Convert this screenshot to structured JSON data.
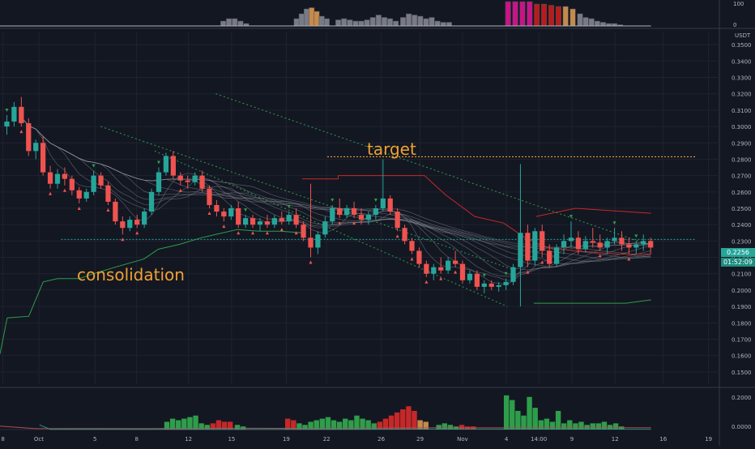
{
  "chart_data": {
    "type": "candlestick",
    "x_ticks": [
      "8",
      "Oct",
      "5",
      "8",
      "12",
      "15",
      "19",
      "22",
      "26",
      "29",
      "Nov",
      "4",
      "14:00",
      "9",
      "12",
      "16",
      "19"
    ],
    "y_ticks": [
      "0.3500",
      "0.3400",
      "0.3300",
      "0.3200",
      "0.3100",
      "0.3000",
      "0.2900",
      "0.2800",
      "0.2700",
      "0.2600",
      "0.2500",
      "0.2400",
      "0.2300",
      "0.2200",
      "0.2100",
      "0.2000",
      "0.1900",
      "0.1800",
      "0.1700",
      "0.1600",
      "0.1500"
    ],
    "y_unit": "USDT",
    "ylim": [
      0.1425,
      0.3575
    ],
    "last_price": "0.2256",
    "countdown": "01:52:09",
    "target_price": 0.2815,
    "consolidation_level": 0.231,
    "annotations": {
      "target": "target",
      "consolidation": "consolidation"
    },
    "top_panel": {
      "ticks": [
        "100",
        "0"
      ]
    },
    "bottom_panel": {
      "ticks": [
        "0.2000",
        "0.0000"
      ]
    },
    "candles": [
      [
        0.3,
        0.307,
        0.295,
        0.303
      ],
      [
        0.303,
        0.315,
        0.3,
        0.312
      ],
      [
        0.312,
        0.318,
        0.3,
        0.302
      ],
      [
        0.302,
        0.305,
        0.282,
        0.285
      ],
      [
        0.285,
        0.292,
        0.28,
        0.29
      ],
      [
        0.29,
        0.294,
        0.27,
        0.272
      ],
      [
        0.272,
        0.276,
        0.262,
        0.265
      ],
      [
        0.265,
        0.274,
        0.262,
        0.271
      ],
      [
        0.271,
        0.275,
        0.264,
        0.268
      ],
      [
        0.268,
        0.27,
        0.258,
        0.261
      ],
      [
        0.261,
        0.263,
        0.253,
        0.256
      ],
      [
        0.256,
        0.262,
        0.254,
        0.26
      ],
      [
        0.26,
        0.273,
        0.258,
        0.27
      ],
      [
        0.27,
        0.272,
        0.262,
        0.264
      ],
      [
        0.264,
        0.266,
        0.252,
        0.254
      ],
      [
        0.254,
        0.256,
        0.24,
        0.242
      ],
      [
        0.242,
        0.245,
        0.234,
        0.238
      ],
      [
        0.238,
        0.245,
        0.236,
        0.243
      ],
      [
        0.243,
        0.246,
        0.238,
        0.24
      ],
      [
        0.24,
        0.25,
        0.238,
        0.248
      ],
      [
        0.248,
        0.262,
        0.246,
        0.26
      ],
      [
        0.26,
        0.275,
        0.258,
        0.272
      ],
      [
        0.272,
        0.284,
        0.27,
        0.282
      ],
      [
        0.282,
        0.285,
        0.268,
        0.27
      ],
      [
        0.27,
        0.272,
        0.264,
        0.267
      ],
      [
        0.267,
        0.27,
        0.262,
        0.266
      ],
      [
        0.266,
        0.272,
        0.264,
        0.27
      ],
      [
        0.27,
        0.273,
        0.26,
        0.262
      ],
      [
        0.262,
        0.264,
        0.25,
        0.252
      ],
      [
        0.252,
        0.255,
        0.245,
        0.248
      ],
      [
        0.248,
        0.25,
        0.242,
        0.245
      ],
      [
        0.245,
        0.252,
        0.243,
        0.25
      ],
      [
        0.25,
        0.254,
        0.238,
        0.24
      ],
      [
        0.24,
        0.246,
        0.238,
        0.244
      ],
      [
        0.244,
        0.246,
        0.238,
        0.24
      ],
      [
        0.24,
        0.244,
        0.236,
        0.242
      ],
      [
        0.242,
        0.246,
        0.238,
        0.24
      ],
      [
        0.24,
        0.246,
        0.238,
        0.244
      ],
      [
        0.244,
        0.248,
        0.24,
        0.242
      ],
      [
        0.242,
        0.248,
        0.24,
        0.246
      ],
      [
        0.246,
        0.25,
        0.238,
        0.24
      ],
      [
        0.24,
        0.242,
        0.23,
        0.232
      ],
      [
        0.232,
        0.265,
        0.22,
        0.226
      ],
      [
        0.226,
        0.236,
        0.222,
        0.234
      ],
      [
        0.234,
        0.245,
        0.232,
        0.242
      ],
      [
        0.242,
        0.252,
        0.24,
        0.25
      ],
      [
        0.25,
        0.256,
        0.244,
        0.246
      ],
      [
        0.246,
        0.252,
        0.244,
        0.25
      ],
      [
        0.25,
        0.254,
        0.244,
        0.246
      ],
      [
        0.246,
        0.25,
        0.24,
        0.243
      ],
      [
        0.243,
        0.248,
        0.24,
        0.246
      ],
      [
        0.246,
        0.252,
        0.243,
        0.25
      ],
      [
        0.25,
        0.28,
        0.248,
        0.256
      ],
      [
        0.256,
        0.258,
        0.246,
        0.248
      ],
      [
        0.248,
        0.25,
        0.236,
        0.238
      ],
      [
        0.238,
        0.24,
        0.228,
        0.23
      ],
      [
        0.23,
        0.232,
        0.222,
        0.224
      ],
      [
        0.224,
        0.226,
        0.214,
        0.216
      ],
      [
        0.216,
        0.218,
        0.208,
        0.21
      ],
      [
        0.21,
        0.216,
        0.206,
        0.214
      ],
      [
        0.214,
        0.22,
        0.21,
        0.212
      ],
      [
        0.212,
        0.22,
        0.21,
        0.218
      ],
      [
        0.218,
        0.224,
        0.214,
        0.216
      ],
      [
        0.216,
        0.218,
        0.204,
        0.206
      ],
      [
        0.206,
        0.212,
        0.204,
        0.21
      ],
      [
        0.21,
        0.212,
        0.2,
        0.202
      ],
      [
        0.202,
        0.206,
        0.198,
        0.204
      ],
      [
        0.204,
        0.206,
        0.2,
        0.202
      ],
      [
        0.202,
        0.205,
        0.199,
        0.203
      ],
      [
        0.203,
        0.207,
        0.2,
        0.205
      ],
      [
        0.205,
        0.216,
        0.203,
        0.214
      ],
      [
        0.214,
        0.277,
        0.19,
        0.235
      ],
      [
        0.235,
        0.24,
        0.214,
        0.218
      ],
      [
        0.218,
        0.238,
        0.215,
        0.236
      ],
      [
        0.236,
        0.24,
        0.22,
        0.224
      ],
      [
        0.224,
        0.228,
        0.214,
        0.216
      ],
      [
        0.216,
        0.228,
        0.214,
        0.226
      ],
      [
        0.226,
        0.234,
        0.222,
        0.23
      ],
      [
        0.23,
        0.242,
        0.226,
        0.232
      ],
      [
        0.232,
        0.236,
        0.222,
        0.225
      ],
      [
        0.225,
        0.233,
        0.223,
        0.23
      ],
      [
        0.23,
        0.238,
        0.226,
        0.229
      ],
      [
        0.229,
        0.234,
        0.224,
        0.226
      ],
      [
        0.226,
        0.232,
        0.222,
        0.23
      ],
      [
        0.23,
        0.238,
        0.228,
        0.232
      ],
      [
        0.232,
        0.236,
        0.224,
        0.228
      ],
      [
        0.228,
        0.232,
        0.222,
        0.226
      ],
      [
        0.226,
        0.23,
        0.222,
        0.228
      ],
      [
        0.228,
        0.234,
        0.224,
        0.23
      ],
      [
        0.23,
        0.232,
        0.222,
        0.226
      ]
    ],
    "top_panel_bars": [
      {
        "x": 0.31,
        "h": 0.2
      },
      {
        "x": 0.318,
        "h": 0.3
      },
      {
        "x": 0.326,
        "h": 0.3
      },
      {
        "x": 0.334,
        "h": 0.2
      },
      {
        "x": 0.342,
        "h": 0.1
      },
      {
        "x": 0.412,
        "h": 0.3
      },
      {
        "x": 0.419,
        "h": 0.5
      },
      {
        "x": 0.426,
        "h": 0.7
      },
      {
        "x": 0.433,
        "h": 0.75
      },
      {
        "x": 0.44,
        "h": 0.6
      },
      {
        "x": 0.447,
        "h": 0.4
      },
      {
        "x": 0.454,
        "h": 0.3
      },
      {
        "x": 0.47,
        "h": 0.25
      },
      {
        "x": 0.478,
        "h": 0.3
      },
      {
        "x": 0.486,
        "h": 0.25
      },
      {
        "x": 0.494,
        "h": 0.2
      },
      {
        "x": 0.502,
        "h": 0.2
      },
      {
        "x": 0.51,
        "h": 0.25
      },
      {
        "x": 0.518,
        "h": 0.35
      },
      {
        "x": 0.526,
        "h": 0.45
      },
      {
        "x": 0.534,
        "h": 0.35
      },
      {
        "x": 0.542,
        "h": 0.3
      },
      {
        "x": 0.55,
        "h": 0.2
      },
      {
        "x": 0.56,
        "h": 0.35
      },
      {
        "x": 0.568,
        "h": 0.5
      },
      {
        "x": 0.576,
        "h": 0.45
      },
      {
        "x": 0.584,
        "h": 0.4
      },
      {
        "x": 0.592,
        "h": 0.3
      },
      {
        "x": 0.6,
        "h": 0.35
      },
      {
        "x": 0.608,
        "h": 0.2
      },
      {
        "x": 0.616,
        "h": 0.15
      },
      {
        "x": 0.624,
        "h": 0.15
      },
      {
        "x": 0.706,
        "h": 1.0
      },
      {
        "x": 0.716,
        "h": 1.0
      },
      {
        "x": 0.726,
        "h": 1.0
      },
      {
        "x": 0.736,
        "h": 1.0
      },
      {
        "x": 0.746,
        "h": 0.9
      },
      {
        "x": 0.756,
        "h": 0.9
      },
      {
        "x": 0.766,
        "h": 0.85
      },
      {
        "x": 0.776,
        "h": 0.8
      },
      {
        "x": 0.786,
        "h": 0.8
      },
      {
        "x": 0.796,
        "h": 0.7
      },
      {
        "x": 0.806,
        "h": 0.5
      },
      {
        "x": 0.814,
        "h": 0.35
      },
      {
        "x": 0.822,
        "h": 0.3
      },
      {
        "x": 0.83,
        "h": 0.2
      },
      {
        "x": 0.838,
        "h": 0.15
      },
      {
        "x": 0.846,
        "h": 0.1
      },
      {
        "x": 0.854,
        "h": 0.1
      },
      {
        "x": 0.862,
        "h": 0.05
      }
    ],
    "bottom_panel_bars": [
      {
        "x": 0.232,
        "v": 0.05,
        "c": "green"
      },
      {
        "x": 0.24,
        "v": 0.07,
        "c": "green"
      },
      {
        "x": 0.248,
        "v": 0.06,
        "c": "green"
      },
      {
        "x": 0.256,
        "v": 0.07,
        "c": "green"
      },
      {
        "x": 0.264,
        "v": 0.08,
        "c": "green"
      },
      {
        "x": 0.272,
        "v": 0.09,
        "c": "green"
      },
      {
        "x": 0.28,
        "v": 0.04,
        "c": "green"
      },
      {
        "x": 0.288,
        "v": 0.03,
        "c": "green"
      },
      {
        "x": 0.296,
        "v": 0.04,
        "c": "red"
      },
      {
        "x": 0.304,
        "v": 0.06,
        "c": "red"
      },
      {
        "x": 0.312,
        "v": 0.05,
        "c": "red"
      },
      {
        "x": 0.32,
        "v": 0.05,
        "c": "red"
      },
      {
        "x": 0.33,
        "v": 0.03,
        "c": "green"
      },
      {
        "x": 0.338,
        "v": 0.02,
        "c": "green"
      },
      {
        "x": 0.4,
        "v": 0.07,
        "c": "red"
      },
      {
        "x": 0.408,
        "v": 0.06,
        "c": "red"
      },
      {
        "x": 0.416,
        "v": 0.04,
        "c": "green"
      },
      {
        "x": 0.424,
        "v": 0.03,
        "c": "green"
      },
      {
        "x": 0.432,
        "v": 0.05,
        "c": "green"
      },
      {
        "x": 0.44,
        "v": 0.06,
        "c": "green"
      },
      {
        "x": 0.448,
        "v": 0.07,
        "c": "green"
      },
      {
        "x": 0.456,
        "v": 0.08,
        "c": "green"
      },
      {
        "x": 0.464,
        "v": 0.06,
        "c": "green"
      },
      {
        "x": 0.472,
        "v": 0.05,
        "c": "green"
      },
      {
        "x": 0.48,
        "v": 0.07,
        "c": "green"
      },
      {
        "x": 0.488,
        "v": 0.06,
        "c": "green"
      },
      {
        "x": 0.496,
        "v": 0.09,
        "c": "green"
      },
      {
        "x": 0.504,
        "v": 0.07,
        "c": "green"
      },
      {
        "x": 0.512,
        "v": 0.06,
        "c": "green"
      },
      {
        "x": 0.52,
        "v": 0.04,
        "c": "green"
      },
      {
        "x": 0.528,
        "v": 0.05,
        "c": "red"
      },
      {
        "x": 0.536,
        "v": 0.07,
        "c": "red"
      },
      {
        "x": 0.544,
        "v": 0.09,
        "c": "red"
      },
      {
        "x": 0.552,
        "v": 0.11,
        "c": "red"
      },
      {
        "x": 0.56,
        "v": 0.13,
        "c": "red"
      },
      {
        "x": 0.568,
        "v": 0.15,
        "c": "red"
      },
      {
        "x": 0.576,
        "v": 0.12,
        "c": "red"
      },
      {
        "x": 0.584,
        "v": 0.06,
        "c": "orange"
      },
      {
        "x": 0.592,
        "v": 0.05,
        "c": "orange"
      },
      {
        "x": 0.61,
        "v": 0.03,
        "c": "green"
      },
      {
        "x": 0.618,
        "v": 0.04,
        "c": "green"
      },
      {
        "x": 0.626,
        "v": 0.03,
        "c": "green"
      },
      {
        "x": 0.634,
        "v": 0.02,
        "c": "green"
      },
      {
        "x": 0.642,
        "v": 0.03,
        "c": "red"
      },
      {
        "x": 0.65,
        "v": 0.02,
        "c": "red"
      },
      {
        "x": 0.658,
        "v": 0.02,
        "c": "red"
      },
      {
        "x": 0.704,
        "v": 0.22,
        "c": "green"
      },
      {
        "x": 0.712,
        "v": 0.19,
        "c": "green"
      },
      {
        "x": 0.72,
        "v": 0.12,
        "c": "green"
      },
      {
        "x": 0.728,
        "v": 0.09,
        "c": "green"
      },
      {
        "x": 0.736,
        "v": 0.21,
        "c": "green"
      },
      {
        "x": 0.744,
        "v": 0.14,
        "c": "green"
      },
      {
        "x": 0.752,
        "v": 0.06,
        "c": "green"
      },
      {
        "x": 0.76,
        "v": 0.07,
        "c": "green"
      },
      {
        "x": 0.768,
        "v": 0.05,
        "c": "green"
      },
      {
        "x": 0.776,
        "v": 0.12,
        "c": "green"
      },
      {
        "x": 0.784,
        "v": 0.04,
        "c": "green"
      },
      {
        "x": 0.792,
        "v": 0.06,
        "c": "green"
      },
      {
        "x": 0.8,
        "v": 0.04,
        "c": "green"
      },
      {
        "x": 0.808,
        "v": 0.05,
        "c": "green"
      },
      {
        "x": 0.816,
        "v": 0.03,
        "c": "green"
      },
      {
        "x": 0.824,
        "v": 0.04,
        "c": "green"
      },
      {
        "x": 0.832,
        "v": 0.04,
        "c": "green"
      },
      {
        "x": 0.84,
        "v": 0.05,
        "c": "green"
      },
      {
        "x": 0.848,
        "v": 0.03,
        "c": "green"
      },
      {
        "x": 0.856,
        "v": 0.04,
        "c": "green"
      },
      {
        "x": 0.864,
        "v": 0.02,
        "c": "green"
      }
    ],
    "colors": {
      "background": "#131722",
      "grid": "#1f2330",
      "up": "#26a69a",
      "down": "#ef5350",
      "axis_text": "#b2b5be",
      "target_line": "#f0a030",
      "consolidation_line": "#26a69a",
      "trend_channel": "#2e9e4a",
      "ribbon": "#8a8e99",
      "red_envelope": "#c62828",
      "top_bar": "#787b86",
      "top_bar_hot": "#c71585",
      "top_bar_warm": "#c68a4a",
      "top_bar_red": "#b71c1c",
      "volume_green": "#2e9e4a",
      "volume_red": "#c62828",
      "volume_orange": "#c68a4a",
      "price_tag": "#26a69a"
    }
  }
}
